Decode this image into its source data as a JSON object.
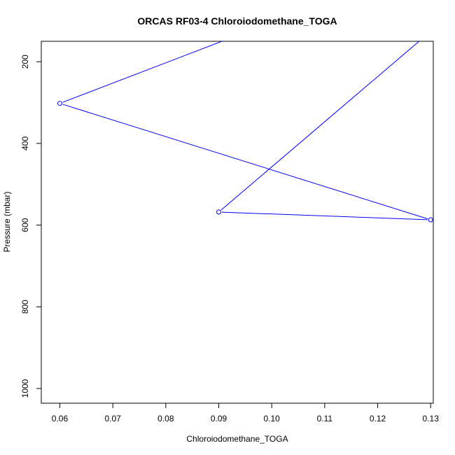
{
  "chart_data": {
    "type": "line",
    "title": "ORCAS RF03-4 Chloroiodomethane_TOGA",
    "xlabel": "Chloroiodomethane_TOGA",
    "ylabel": "Pressure (mbar)",
    "xlim": [
      0.0565,
      0.1305
    ],
    "ylim": [
      1036,
      150
    ],
    "y_reversed": true,
    "x_ticks": [
      0.06,
      0.07,
      0.08,
      0.09,
      0.1,
      0.11,
      0.12,
      0.13
    ],
    "x_tick_labels": [
      "0.06",
      "0.07",
      "0.08",
      "0.09",
      "0.10",
      "0.11",
      "0.12",
      "0.13"
    ],
    "y_ticks": [
      200,
      400,
      600,
      800,
      1000
    ],
    "y_tick_labels": [
      "200",
      "400",
      "600",
      "800",
      "1000"
    ],
    "grid": false,
    "series": [
      {
        "color": "#0000ff",
        "marker": "open-circle",
        "points": [
          {
            "x": 0.091,
            "y": 148
          },
          {
            "x": 0.06,
            "y": 302
          },
          {
            "x": 0.13,
            "y": 587
          },
          {
            "x": 0.09,
            "y": 568
          },
          {
            "x": 0.128,
            "y": 148
          }
        ],
        "marked": [
          false,
          true,
          true,
          true,
          false
        ]
      }
    ]
  }
}
